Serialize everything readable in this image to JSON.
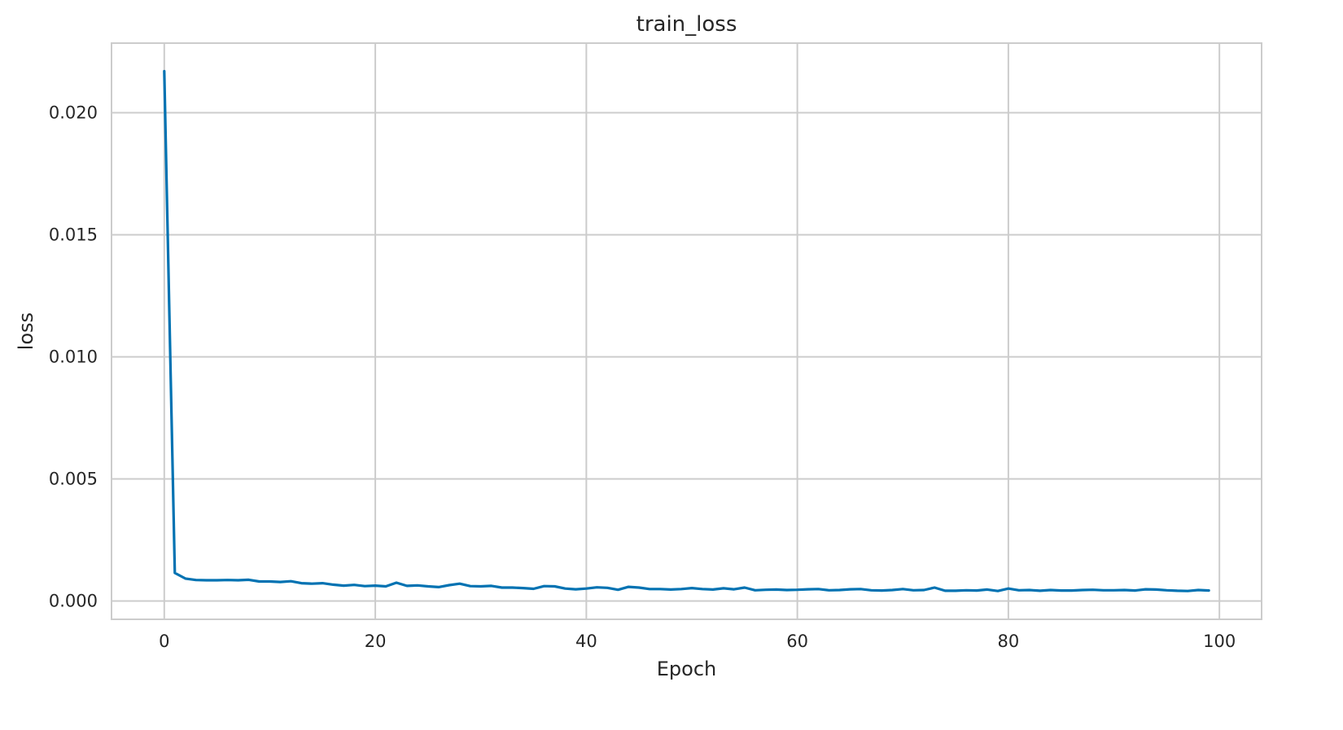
{
  "chart_data": {
    "type": "line",
    "title": "train_loss",
    "xlabel": "Epoch",
    "ylabel": "loss",
    "xlim": [
      -5,
      104
    ],
    "ylim": [
      -0.00075,
      0.02285
    ],
    "grid": true,
    "x_ticks": [
      {
        "value": 0,
        "label": "0"
      },
      {
        "value": 20,
        "label": "20"
      },
      {
        "value": 40,
        "label": "40"
      },
      {
        "value": 60,
        "label": "60"
      },
      {
        "value": 80,
        "label": "80"
      },
      {
        "value": 100,
        "label": "100"
      }
    ],
    "y_ticks": [
      {
        "value": 0.0,
        "label": "0.000"
      },
      {
        "value": 0.005,
        "label": "0.005"
      },
      {
        "value": 0.01,
        "label": "0.010"
      },
      {
        "value": 0.015,
        "label": "0.015"
      },
      {
        "value": 0.02,
        "label": "0.020"
      }
    ],
    "series": [
      {
        "color": "#0072B2",
        "x": [
          0,
          1,
          2,
          3,
          4,
          5,
          6,
          7,
          8,
          9,
          10,
          11,
          12,
          13,
          14,
          15,
          16,
          17,
          18,
          19,
          20,
          21,
          22,
          23,
          24,
          25,
          26,
          27,
          28,
          29,
          30,
          31,
          32,
          33,
          34,
          35,
          36,
          37,
          38,
          39,
          40,
          41,
          42,
          43,
          44,
          45,
          46,
          47,
          48,
          49,
          50,
          51,
          52,
          53,
          54,
          55,
          56,
          57,
          58,
          59,
          60,
          61,
          62,
          63,
          64,
          65,
          66,
          67,
          68,
          69,
          70,
          71,
          72,
          73,
          74,
          75,
          76,
          77,
          78,
          79,
          80,
          81,
          82,
          83,
          84,
          85,
          86,
          87,
          88,
          89,
          90,
          91,
          92,
          93,
          94,
          95,
          96,
          97,
          98,
          99
        ],
        "values": [
          0.0217,
          0.00115,
          0.00092,
          0.00086,
          0.00085,
          0.00085,
          0.00086,
          0.00085,
          0.00087,
          0.0008,
          0.0008,
          0.00078,
          0.00081,
          0.00073,
          0.00071,
          0.00073,
          0.00067,
          0.00063,
          0.00066,
          0.00061,
          0.00063,
          0.0006,
          0.00075,
          0.00062,
          0.00064,
          0.0006,
          0.00057,
          0.00065,
          0.00071,
          0.00061,
          0.0006,
          0.00062,
          0.00055,
          0.00055,
          0.00053,
          0.0005,
          0.00061,
          0.0006,
          0.00051,
          0.00048,
          0.00051,
          0.00056,
          0.00054,
          0.00046,
          0.00058,
          0.00055,
          0.00049,
          0.00049,
          0.00047,
          0.00049,
          0.00053,
          0.00049,
          0.00047,
          0.00052,
          0.00048,
          0.00055,
          0.00044,
          0.00046,
          0.00047,
          0.00045,
          0.00046,
          0.00048,
          0.00049,
          0.00044,
          0.00045,
          0.00048,
          0.00049,
          0.00044,
          0.00043,
          0.00045,
          0.00049,
          0.00044,
          0.00045,
          0.00055,
          0.00042,
          0.00042,
          0.00044,
          0.00043,
          0.00047,
          0.00041,
          0.00051,
          0.00044,
          0.00045,
          0.00042,
          0.00045,
          0.00043,
          0.00043,
          0.00045,
          0.00046,
          0.00044,
          0.00044,
          0.00045,
          0.00043,
          0.00048,
          0.00047,
          0.00044,
          0.00042,
          0.00041,
          0.00045,
          0.00043
        ]
      }
    ]
  },
  "style": {
    "background": "#ffffff",
    "axes_background": "#ffffff",
    "grid_color": "#cccccc",
    "spine_color": "#cccccc",
    "text_color": "#262626"
  }
}
